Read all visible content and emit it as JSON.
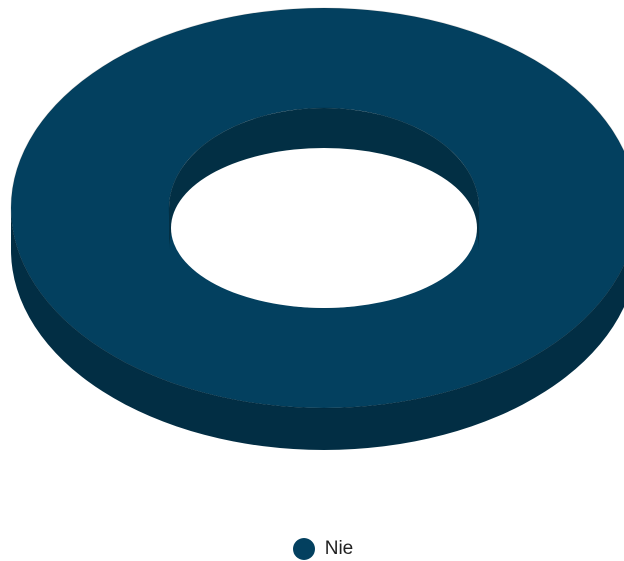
{
  "chart_data": {
    "type": "pie",
    "variant": "3d-donut",
    "categories": [
      "Nie"
    ],
    "values": [
      100
    ],
    "colors": {
      "top": "#03405f",
      "side": "#022e44",
      "hole_wall": "#022f44"
    },
    "legend": {
      "position": "bottom-center",
      "items": [
        {
          "label": "Nie",
          "color": "#03405f"
        }
      ]
    }
  }
}
